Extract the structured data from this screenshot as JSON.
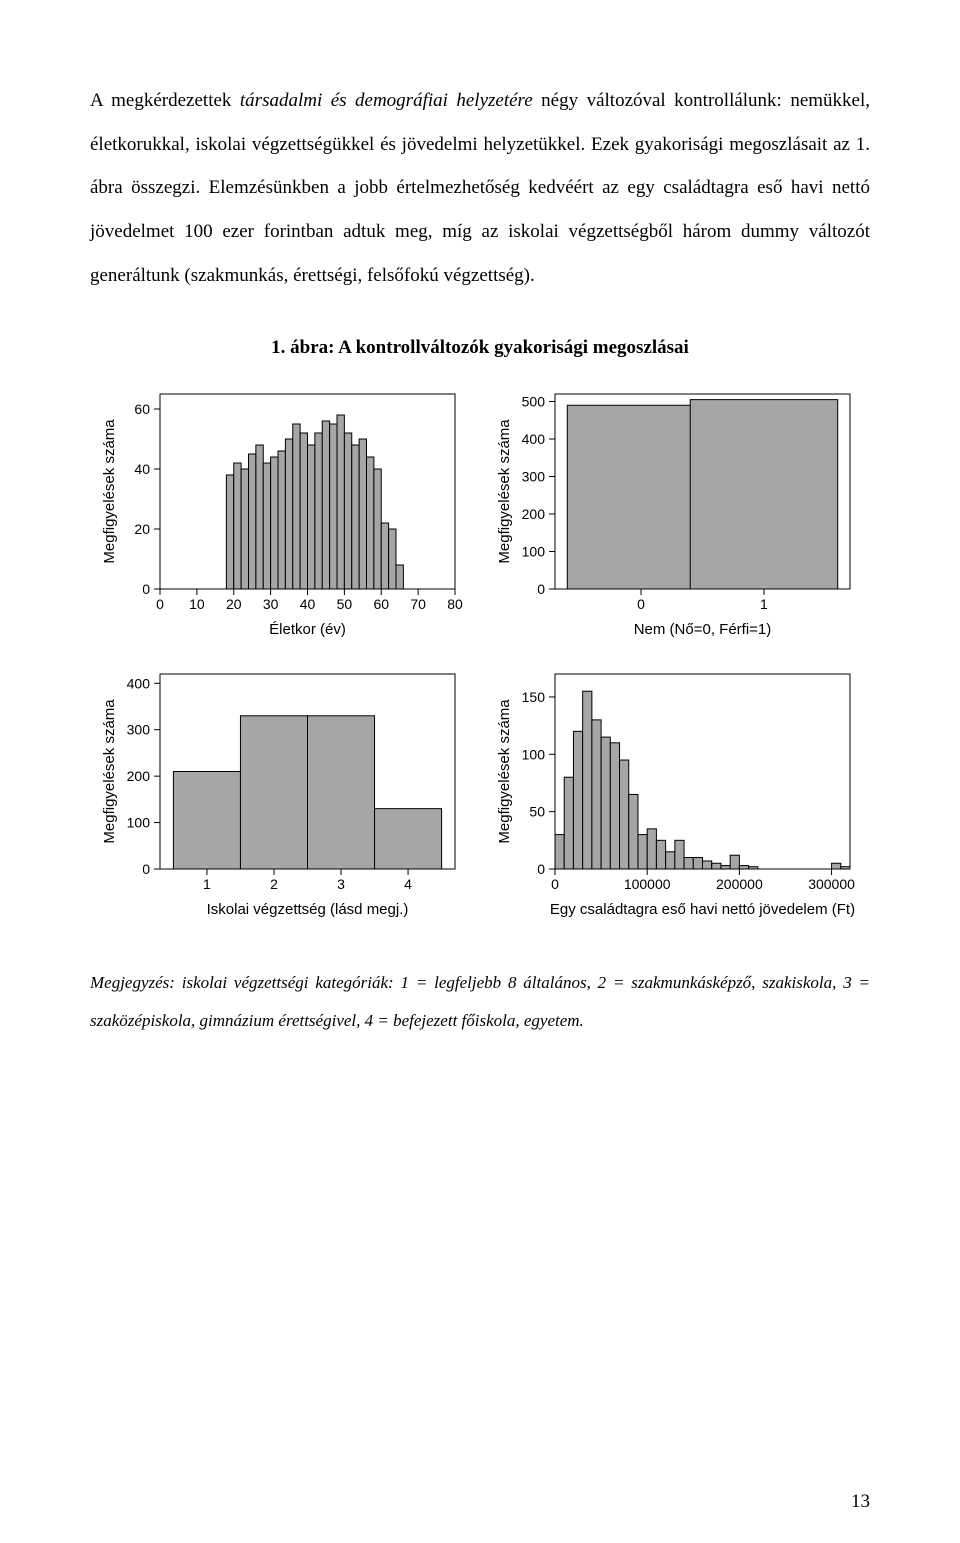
{
  "text": {
    "para": "A megkérdezettek ",
    "para_italic": "társadalmi és demográfiai helyzetére",
    "para_rest": " négy változóval kontrollálunk: nemükkel, életkorukkal, iskolai végzettségükkel és jövedelmi helyzetükkel. Ezek gyakorisági megoszlásait az 1. ábra összegzi. Elemzésünkben a jobb értelmezhetőség kedvéért az egy családtagra eső havi nettó jövedelmet 100 ezer forintban adtuk meg, míg az iskolai végzettségből három dummy változót generáltunk (szakmunkás, érettségi, felsőfokú végzettség)."
  },
  "figure": {
    "title": "1. ábra: A kontrollváltozók gyakorisági megoszlásai",
    "note": "Megjegyzés: iskolai végzettségi kategóriák: 1 = legfeljebb 8 általános, 2 = szakmunkásképző, szakiskola, 3 = szaközépiskola, gimnázium érettségivel, 4 = befejezett főiskola, egyetem.",
    "common": {
      "bar_fill": "#a6a6a6",
      "bar_stroke": "#000000",
      "axis_color": "#000000",
      "box_color": "#000000",
      "bg_color": "#ffffff",
      "tick_font": 14,
      "label_font": 15,
      "ylabel": "Megfigyelések száma"
    },
    "panels": {
      "age": {
        "type": "histogram",
        "xlabel": "Életkor (év)",
        "xticks": [
          0,
          10,
          20,
          30,
          40,
          50,
          60,
          70,
          80
        ],
        "xlim": [
          0,
          80
        ],
        "yticks": [
          0,
          20,
          40,
          60
        ],
        "ylim": [
          0,
          65
        ],
        "bin_start": 18,
        "bin_width": 2,
        "values": [
          38,
          42,
          40,
          45,
          48,
          42,
          44,
          46,
          50,
          55,
          52,
          48,
          52,
          56,
          55,
          58,
          52,
          48,
          50,
          44,
          40,
          22,
          20,
          8
        ]
      },
      "sex": {
        "type": "bar",
        "xlabel": "Nem (Nő=0, Férfi=1)",
        "xticks": [
          0,
          1
        ],
        "xlim": [
          -0.7,
          1.7
        ],
        "yticks": [
          0,
          100,
          200,
          300,
          400,
          500
        ],
        "ylim": [
          0,
          520
        ],
        "categories": [
          0,
          1
        ],
        "values": [
          490,
          505
        ],
        "bar_width": 1.2
      },
      "edu": {
        "type": "bar",
        "xlabel": "Iskolai végzettség (lásd megj.)",
        "xticks": [
          1,
          2,
          3,
          4
        ],
        "xlim": [
          0.3,
          4.7
        ],
        "yticks": [
          0,
          100,
          200,
          300,
          400
        ],
        "ylim": [
          0,
          420
        ],
        "categories": [
          1,
          2,
          3,
          4
        ],
        "values": [
          210,
          330,
          330,
          130
        ],
        "bar_width": 1.0
      },
      "income": {
        "type": "histogram",
        "xlabel": "Egy családtagra eső havi nettó jövedelem (Ft)",
        "xticks": [
          0,
          100000,
          200000,
          300000
        ],
        "xlim": [
          0,
          320000
        ],
        "yticks": [
          0,
          50,
          100,
          150
        ],
        "ylim": [
          0,
          170
        ],
        "bin_start": 0,
        "bin_width": 10000,
        "values": [
          30,
          80,
          120,
          155,
          130,
          115,
          110,
          95,
          65,
          30,
          35,
          25,
          15,
          25,
          10,
          10,
          7,
          5,
          3,
          12,
          3,
          2,
          0,
          0,
          0,
          0,
          0,
          0,
          0,
          0,
          5,
          2
        ]
      }
    }
  },
  "page_number": "13"
}
